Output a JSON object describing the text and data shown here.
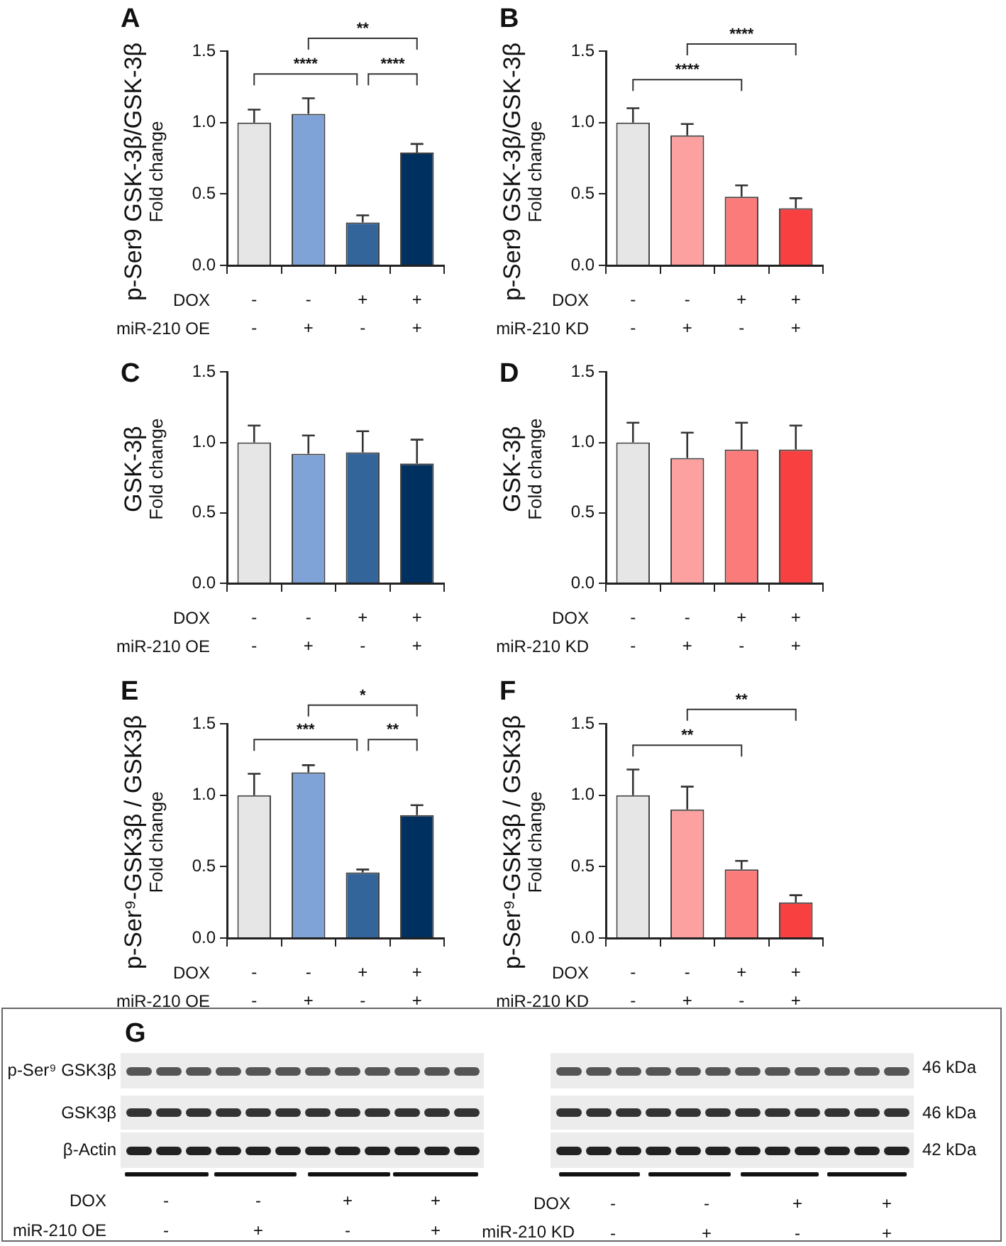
{
  "chart_data": [
    {
      "type": "bar",
      "title": "A",
      "ylabel": "p-Ser9 GSK-3β/GSK-3β\nFold change",
      "categories": [
        "-\n-",
        "-\n+",
        "+\n-",
        "+\n+"
      ],
      "values": [
        1.0,
        1.06,
        0.3,
        0.79
      ],
      "errors": [
        0.09,
        0.11,
        0.05,
        0.06
      ],
      "colors": [
        "#e6e6e6",
        "#7fa3d6",
        "#33649a",
        "#003060"
      ],
      "ylim": [
        0,
        1.5
      ],
      "yticks": [
        {
          "value": 0,
          "label": "0.0"
        },
        {
          "value": 0.5,
          "label": "0.5"
        },
        {
          "value": 1,
          "label": "1.0"
        },
        {
          "value": 1.5,
          "label": "1.5"
        }
      ],
      "grid": false,
      "annotations": [
        "DOX",
        "miR-210 OE",
        "****",
        "****",
        "**"
      ]
    },
    {
      "type": "bar",
      "title": "B",
      "ylabel": "p-Ser9 GSK-3β/GSK-3β\nFold change",
      "categories": [
        "-\n-",
        "-\n+",
        "+\n-",
        "+\n+"
      ],
      "values": [
        1.0,
        0.91,
        0.48,
        0.4
      ],
      "errors": [
        0.1,
        0.08,
        0.08,
        0.07
      ],
      "colors": [
        "#e6e6e6",
        "#fca0a0",
        "#fb7a7a",
        "#f84040"
      ],
      "ylim": [
        0,
        1.5
      ],
      "yticks": [
        {
          "value": 0,
          "label": "0.0"
        },
        {
          "value": 0.5,
          "label": "0.5"
        },
        {
          "value": 1,
          "label": "1.0"
        },
        {
          "value": 1.5,
          "label": "1.5"
        }
      ],
      "grid": false,
      "annotations": [
        "DOX",
        "miR-210 KD",
        "****",
        "****"
      ]
    },
    {
      "type": "bar",
      "title": "C",
      "ylabel": "GSK-3β\nFold change",
      "categories": [
        "-\n-",
        "-\n+",
        "+\n-",
        "+\n+"
      ],
      "values": [
        1.0,
        0.92,
        0.93,
        0.85
      ],
      "errors": [
        0.12,
        0.13,
        0.15,
        0.17
      ],
      "colors": [
        "#e6e6e6",
        "#7fa3d6",
        "#33649a",
        "#003060"
      ],
      "ylim": [
        0,
        1.5
      ],
      "yticks": [
        {
          "value": 0,
          "label": "0.0"
        },
        {
          "value": 0.5,
          "label": "0.5"
        },
        {
          "value": 1,
          "label": "1.0"
        },
        {
          "value": 1.5,
          "label": "1.5"
        }
      ],
      "grid": false,
      "annotations": [
        "DOX",
        "miR-210 OE"
      ]
    },
    {
      "type": "bar",
      "title": "D",
      "ylabel": "GSK-3β\nFold change",
      "categories": [
        "-\n-",
        "-\n+",
        "+\n-",
        "+\n+"
      ],
      "values": [
        1.0,
        0.89,
        0.95,
        0.95
      ],
      "errors": [
        0.14,
        0.18,
        0.19,
        0.17
      ],
      "colors": [
        "#e6e6e6",
        "#fca0a0",
        "#fb7a7a",
        "#f84040"
      ],
      "ylim": [
        0,
        1.5
      ],
      "yticks": [
        {
          "value": 0,
          "label": "0.0"
        },
        {
          "value": 0.5,
          "label": "0.5"
        },
        {
          "value": 1,
          "label": "1.0"
        },
        {
          "value": 1.5,
          "label": "1.5"
        }
      ],
      "grid": false,
      "annotations": [
        "DOX",
        "miR-210 KD"
      ]
    },
    {
      "type": "bar",
      "title": "E",
      "ylabel": "p-Ser⁹-GSK3β / GSK3β\nFold change",
      "categories": [
        "-\n-",
        "-\n+",
        "+\n-",
        "+\n+"
      ],
      "values": [
        1.0,
        1.16,
        0.46,
        0.86
      ],
      "errors": [
        0.15,
        0.05,
        0.02,
        0.07
      ],
      "colors": [
        "#e6e6e6",
        "#7fa3d6",
        "#33649a",
        "#003060"
      ],
      "ylim": [
        0,
        1.5
      ],
      "yticks": [
        {
          "value": 0,
          "label": "0.0"
        },
        {
          "value": 0.5,
          "label": "0.5"
        },
        {
          "value": 1,
          "label": "1.0"
        },
        {
          "value": 1.5,
          "label": "1.5"
        }
      ],
      "grid": false,
      "annotations": [
        "DOX",
        "miR-210 OE",
        "***",
        "**",
        "*"
      ]
    },
    {
      "type": "bar",
      "title": "F",
      "ylabel": "p-Ser⁹-GSK3β / GSK3β\nFold change",
      "categories": [
        "-\n-",
        "-\n+",
        "+\n-",
        "+\n+"
      ],
      "values": [
        1.0,
        0.9,
        0.48,
        0.25
      ],
      "errors": [
        0.18,
        0.16,
        0.06,
        0.05
      ],
      "colors": [
        "#e6e6e6",
        "#fca0a0",
        "#fb7a7a",
        "#f84040"
      ],
      "ylim": [
        0,
        1.5
      ],
      "yticks": [
        {
          "value": 0,
          "label": "0.0"
        },
        {
          "value": 0.5,
          "label": "0.5"
        },
        {
          "value": 1,
          "label": "1.0"
        },
        {
          "value": 1.5,
          "label": "1.5"
        }
      ],
      "grid": false,
      "annotations": [
        "DOX",
        "miR-210 KD",
        "**",
        "**"
      ]
    },
    {
      "type": "other",
      "title": "G",
      "categories": [
        "-\n-",
        "-\n+",
        "+\n-",
        "+\n+"
      ],
      "annotations": [
        "p-Ser⁹ GSK3β",
        "GSK3β",
        "β-Actin",
        "46 kDa",
        "46 kDa",
        "42 kDa",
        "DOX",
        "miR-210 OE",
        "DOX",
        "miR-210 KD"
      ]
    }
  ]
}
